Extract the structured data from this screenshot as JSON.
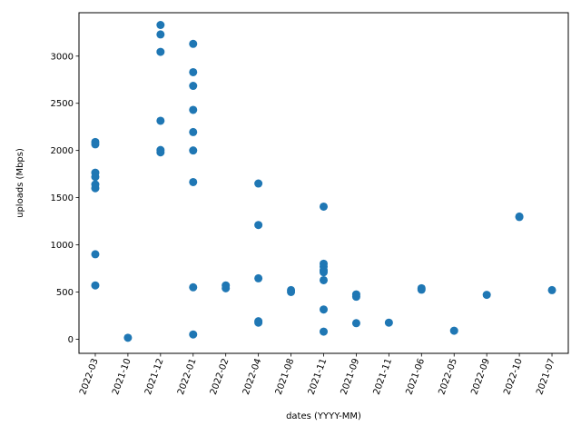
{
  "chart_data": {
    "type": "scatter",
    "xlabel": "dates (YYYY-MM)",
    "ylabel": "uploads (Mbps)",
    "categories": [
      "2022-03",
      "2021-10",
      "2021-12",
      "2022-01",
      "2022-02",
      "2022-04",
      "2021-08",
      "2021-11",
      "2021-09",
      "2021-11",
      "2021-06",
      "2022-05",
      "2022-09",
      "2022-10",
      "2021-07"
    ],
    "ylim": [
      -150,
      3460
    ],
    "yticks": [
      0,
      500,
      1000,
      1500,
      2000,
      2500,
      3000
    ],
    "marker_color": "#1f77b4",
    "grid": false,
    "points": [
      {
        "x": "2022-03",
        "y": [
          2090,
          2065,
          1765,
          1720,
          1640,
          1600,
          900,
          570
        ]
      },
      {
        "x": "2021-10",
        "y": [
          15
        ]
      },
      {
        "x": "2021-12",
        "y": [
          3330,
          3230,
          3045,
          2315,
          2005,
          1980
        ]
      },
      {
        "x": "2022-01",
        "y": [
          3130,
          2830,
          2685,
          2430,
          2195,
          2000,
          1665,
          550,
          50
        ]
      },
      {
        "x": "2022-02",
        "y": [
          570,
          540
        ]
      },
      {
        "x": "2022-04",
        "y": [
          1650,
          1210,
          645,
          190,
          175
        ]
      },
      {
        "x": "2021-08",
        "y": [
          520,
          500
        ]
      },
      {
        "x": "2021-11",
        "y": [
          1405,
          800,
          770,
          730,
          710,
          625,
          315,
          80
        ]
      },
      {
        "x": "2021-09",
        "y": [
          475,
          450,
          170
        ]
      },
      {
        "x": "2021-11",
        "y": [
          175
        ]
      },
      {
        "x": "2021-06",
        "y": [
          540,
          525
        ]
      },
      {
        "x": "2022-05",
        "y": [
          90
        ]
      },
      {
        "x": "2022-09",
        "y": [
          470
        ]
      },
      {
        "x": "2022-10",
        "y": [
          1300,
          1295
        ]
      },
      {
        "x": "2021-07",
        "y": [
          520
        ]
      }
    ]
  }
}
